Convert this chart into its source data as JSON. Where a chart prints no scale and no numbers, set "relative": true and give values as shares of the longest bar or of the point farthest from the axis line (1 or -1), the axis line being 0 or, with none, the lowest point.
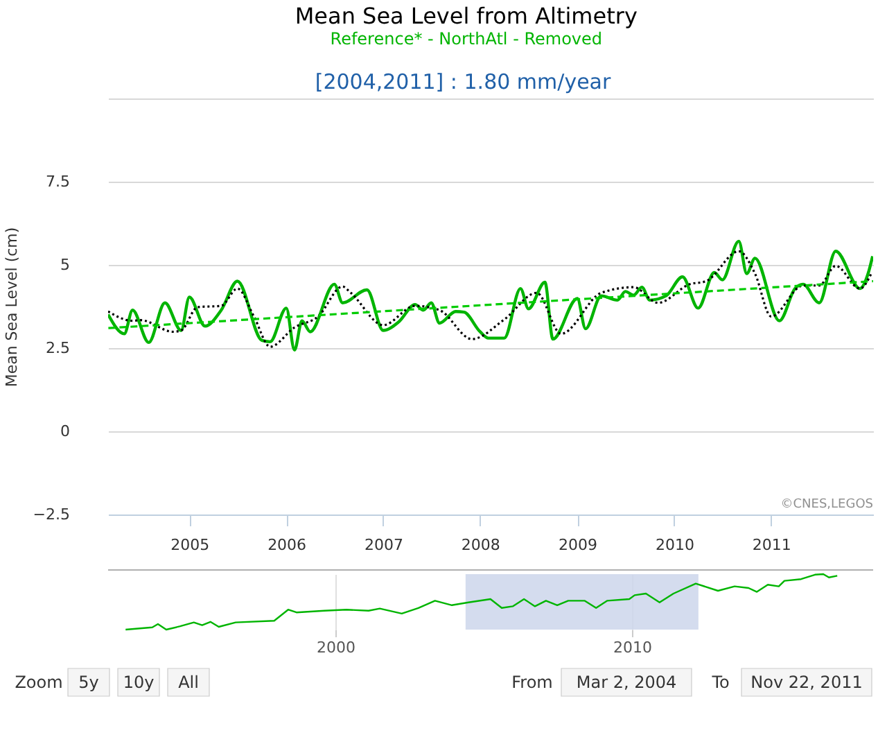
{
  "chart_data": [
    {
      "type": "line",
      "title": "Mean Sea Level from Altimetry",
      "subtitle": "Reference* - NorthAtl - Removed",
      "ylabel": "Mean Sea Level (cm)",
      "annotations": [
        "[2004,2011] : 1.80 mm/year",
        "©CNES,LEGOS"
      ],
      "xlim": [
        "2004-03-01",
        "2012-01-20"
      ],
      "xticks": [
        "2005",
        "2006",
        "2007",
        "2008",
        "2009",
        "2010",
        "2011"
      ],
      "ylim": [
        -2.5,
        10
      ],
      "yticks": [
        {
          "value": -2.5,
          "label": "−2.5"
        },
        0,
        2.5,
        5,
        7.5,
        {
          "value": 10,
          "label": null
        }
      ],
      "grid": "y",
      "marker": "none",
      "series": [
        {
          "color": "#00b400",
          "line_style": "solid",
          "x": [
            "2004-03",
            "2004-05",
            "2004-06",
            "2004-08",
            "2004-10",
            "2004-12",
            "2005-01",
            "2005-03",
            "2005-05",
            "2005-07",
            "2005-10",
            "2005-11",
            "2006-01",
            "2006-02",
            "2006-03",
            "2006-04",
            "2006-07",
            "2006-08",
            "2006-11",
            "2007-01",
            "2007-03",
            "2007-05",
            "2007-06",
            "2007-07",
            "2007-08",
            "2007-10",
            "2007-11",
            "2008-01",
            "2008-02",
            "2008-04",
            "2008-06",
            "2008-07",
            "2008-09",
            "2008-10",
            "2009-01",
            "2009-02",
            "2009-04",
            "2009-06",
            "2009-07",
            "2009-08",
            "2009-09",
            "2009-10",
            "2009-12",
            "2010-02",
            "2010-04",
            "2010-06",
            "2010-07",
            "2010-09",
            "2010-10",
            "2010-11",
            "2011-02",
            "2011-04",
            "2011-05",
            "2011-07",
            "2011-09",
            "2011-12",
            "2012-01-01",
            "2012-01-18"
          ],
          "values": [
            3.51,
            2.93,
            3.64,
            2.67,
            3.86,
            3.03,
            4.03,
            3.16,
            3.64,
            4.51,
            2.73,
            2.69,
            3.7,
            2.44,
            3.32,
            2.99,
            4.42,
            3.86,
            4.25,
            3.03,
            3.29,
            3.81,
            3.64,
            3.86,
            3.25,
            3.6,
            3.58,
            2.99,
            2.8,
            2.8,
            4.29,
            3.68,
            4.48,
            2.77,
            3.99,
            3.08,
            4.07,
            3.94,
            4.2,
            4.09,
            4.33,
            3.94,
            4.07,
            4.64,
            3.7,
            4.77,
            4.55,
            5.71,
            4.74,
            5.2,
            3.32,
            4.29,
            4.42,
            3.86,
            5.41,
            4.29,
            4.74,
            5.26
          ]
        },
        {
          "color": "#000000",
          "line_style": "dotted",
          "x": [
            "2004-03",
            "2004-06",
            "2004-07",
            "2004-11",
            "2004-12",
            "2005-02",
            "2005-05",
            "2005-07",
            "2005-09",
            "2005-11",
            "2006-02",
            "2006-05",
            "2006-08",
            "2006-09",
            "2007-01",
            "2007-05",
            "2007-08",
            "2007-12",
            "2008-04",
            "2008-08",
            "2008-11",
            "2009-04",
            "2009-08",
            "2009-11",
            "2010-03",
            "2010-05",
            "2010-09",
            "2010-11",
            "2011-01",
            "2011-05",
            "2011-07",
            "2011-09",
            "2011-12",
            "2012-01-15"
          ],
          "values": [
            3.6,
            3.32,
            3.34,
            2.99,
            3.03,
            3.73,
            3.77,
            4.29,
            3.45,
            2.54,
            3.12,
            3.45,
            4.35,
            4.16,
            3.19,
            3.77,
            3.64,
            2.77,
            3.36,
            4.16,
            2.93,
            4.16,
            4.33,
            3.86,
            4.42,
            4.51,
            5.41,
            4.74,
            3.45,
            4.38,
            4.38,
            4.97,
            4.29,
            4.77
          ]
        },
        {
          "color": "#00cc00",
          "line_style": "dashed",
          "x": [
            "2004-03-02",
            "2012-01-20"
          ],
          "values": [
            3.1,
            4.51
          ]
        }
      ]
    },
    {
      "type": "line",
      "relative": true,
      "color": "#00b400",
      "annotations": [
        "Zoom",
        "5y",
        "10y",
        "All",
        "From",
        "Mar 2, 2004",
        "To",
        "Nov 22, 2011"
      ],
      "xlim": [
        1992.34,
        2018.13
      ],
      "xticks": [
        2000,
        2010
      ],
      "grid": "x",
      "bands": [
        {
          "axis": "x",
          "from": 2004.39,
          "to": 2012.24,
          "color": "#ccd6eb"
        }
      ],
      "x": [
        1992.93,
        1993.83,
        1994.02,
        1994.3,
        1994.77,
        1995.23,
        1995.51,
        1995.79,
        1996.07,
        1996.64,
        1997.94,
        1998.41,
        1998.69,
        1999.63,
        2000.37,
        2001.12,
        2001.5,
        2002.24,
        2002.8,
        2003.36,
        2003.93,
        2004.49,
        2005.23,
        2005.61,
        2005.98,
        2006.36,
        2006.73,
        2007.1,
        2007.48,
        2007.85,
        2008.41,
        2008.79,
        2009.16,
        2009.91,
        2010.09,
        2010.47,
        2010.93,
        2011.4,
        2012.15,
        2012.9,
        2013.46,
        2013.93,
        2014.21,
        2014.58,
        2014.95,
        2015.14,
        2015.7,
        2016.17,
        2016.45,
        2016.64,
        2016.92
      ],
      "values": [
        0,
        0.04,
        0.1,
        0,
        0.06,
        0.13,
        0.08,
        0.14,
        0.05,
        0.13,
        0.16,
        0.36,
        0.31,
        0.34,
        0.36,
        0.34,
        0.38,
        0.29,
        0.39,
        0.52,
        0.44,
        0.49,
        0.55,
        0.39,
        0.42,
        0.55,
        0.42,
        0.52,
        0.44,
        0.52,
        0.52,
        0.39,
        0.52,
        0.55,
        0.62,
        0.65,
        0.49,
        0.65,
        0.83,
        0.7,
        0.78,
        0.75,
        0.68,
        0.81,
        0.78,
        0.88,
        0.91,
        0.99,
        1,
        0.94,
        0.97
      ]
    }
  ]
}
